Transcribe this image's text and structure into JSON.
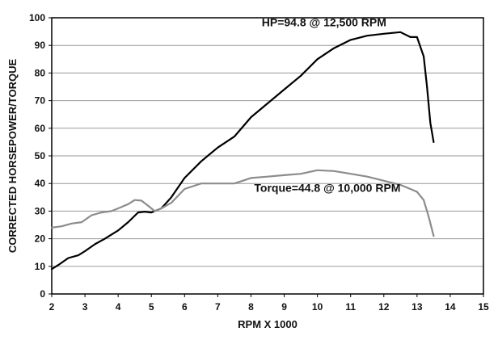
{
  "chart_data": {
    "type": "line",
    "title": "",
    "xlabel": "RPM X 1000",
    "ylabel": "CORRECTED HORSEPOWER/TORQUE",
    "xlim": [
      2,
      15
    ],
    "ylim": [
      0,
      100
    ],
    "xticks": [
      2,
      3,
      4,
      5,
      6,
      7,
      8,
      9,
      10,
      11,
      12,
      13,
      14,
      15
    ],
    "yticks": [
      0,
      10,
      20,
      30,
      40,
      50,
      60,
      70,
      80,
      90,
      100
    ],
    "grid": true,
    "legend": "none",
    "series": [
      {
        "color": "#000000",
        "x": [
          2.0,
          2.2,
          2.5,
          2.8,
          3.0,
          3.3,
          3.6,
          4.0,
          4.3,
          4.6,
          4.8,
          5.0,
          5.3,
          5.6,
          6.0,
          6.5,
          7.0,
          7.5,
          8.0,
          8.5,
          9.0,
          9.5,
          10.0,
          10.5,
          11.0,
          11.5,
          12.0,
          12.5,
          12.8,
          13.0,
          13.2,
          13.3,
          13.4,
          13.5
        ],
        "values": [
          9,
          10.5,
          13,
          14,
          15.5,
          18,
          20,
          23,
          26,
          29.5,
          29.8,
          29.5,
          31,
          35,
          42,
          48,
          53,
          57,
          64,
          69,
          74,
          79,
          85,
          89,
          92,
          93.5,
          94.2,
          94.8,
          93,
          93,
          86,
          75,
          62,
          55
        ]
      },
      {
        "color": "#8c8c8c",
        "x": [
          2.0,
          2.3,
          2.6,
          2.9,
          3.2,
          3.5,
          3.8,
          4.0,
          4.3,
          4.5,
          4.7,
          4.9,
          5.1,
          5.3,
          5.6,
          6.0,
          6.5,
          7.0,
          7.5,
          8.0,
          8.5,
          9.0,
          9.5,
          10.0,
          10.5,
          11.0,
          11.5,
          12.0,
          12.5,
          12.8,
          13.0,
          13.2,
          13.35,
          13.5
        ],
        "values": [
          24,
          24.5,
          25.5,
          26,
          28.5,
          29.5,
          30,
          31,
          32.5,
          34,
          33.8,
          32,
          30,
          31,
          33,
          38,
          40,
          40,
          40,
          42,
          42.5,
          43,
          43.5,
          44.8,
          44.5,
          43.5,
          42.5,
          41,
          39.5,
          38,
          37,
          34,
          28,
          21
        ]
      }
    ],
    "annotations": [
      {
        "text": "HP=94.8 @ 12,500 RPM",
        "x": 10.2,
        "y": 97
      },
      {
        "text": "Torque=44.8 @ 10,000 RPM",
        "x": 10.3,
        "y": 37
      }
    ]
  }
}
